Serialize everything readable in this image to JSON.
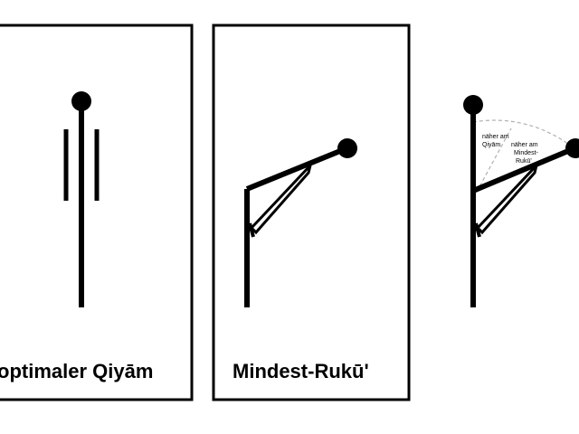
{
  "panels": [
    {
      "id": "qiyam",
      "caption": "optimaler Qiyām"
    },
    {
      "id": "ruku",
      "caption": "Mindest-Rukū'"
    },
    {
      "id": "comparison",
      "labels": {
        "closer_qiyam": [
          "näher am",
          "Qiyām"
        ],
        "closer_ruku": [
          "näher am",
          "Mindest-",
          "Rukū'"
        ]
      }
    }
  ],
  "colors": {
    "ink": "#000000",
    "background": "#ffffff",
    "guide": "#b0b0b0"
  }
}
